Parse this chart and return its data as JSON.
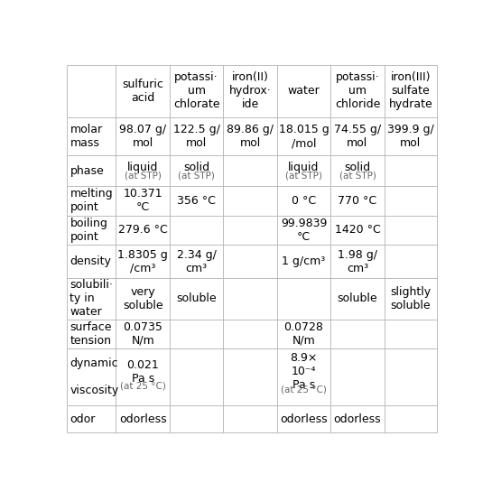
{
  "col_headers_display": [
    [],
    [
      "sulfuric",
      "acid"
    ],
    [
      "potassi·",
      "um",
      "chlorate"
    ],
    [
      "iron(II)",
      "hydrox·",
      "ide"
    ],
    [
      "water"
    ],
    [
      "potassi·",
      "um",
      "chloride"
    ],
    [
      "iron(III)",
      "sulfate",
      "hydrate"
    ]
  ],
  "rows": [
    {
      "label": [
        "molar",
        "mass"
      ],
      "values": [
        "98.07 g/\nmol",
        "122.5 g/\nmol",
        "89.86 g/\nmol",
        "18.015 g\n/mol",
        "74.55 g/\nmol",
        "399.9 g/\nmol"
      ]
    },
    {
      "label": [
        "phase"
      ],
      "values": [
        "liquid\n(at STP)",
        "solid\n(at STP)",
        "",
        "liquid\n(at STP)",
        "solid\n(at STP)",
        ""
      ]
    },
    {
      "label": [
        "melting",
        "point"
      ],
      "values": [
        "10.371\n°C",
        "356 °C",
        "",
        "0 °C",
        "770 °C",
        ""
      ]
    },
    {
      "label": [
        "boiling",
        "point"
      ],
      "values": [
        "279.6 °C",
        "",
        "",
        "99.9839\n°C",
        "1420 °C",
        ""
      ]
    },
    {
      "label": [
        "density"
      ],
      "values": [
        "1.8305 g\n/cm³",
        "2.34 g/\ncm³",
        "",
        "1 g/cm³",
        "1.98 g/\ncm³",
        ""
      ]
    },
    {
      "label": [
        "solubili·",
        "ty in",
        "water"
      ],
      "values": [
        "very\nsoluble",
        "soluble",
        "",
        "",
        "soluble",
        "slightly\nsoluble"
      ]
    },
    {
      "label": [
        "surface",
        "tension"
      ],
      "values": [
        "0.0735\nN/m",
        "",
        "",
        "0.0728\nN/m",
        "",
        ""
      ]
    },
    {
      "label": [
        "dynamic",
        "",
        "viscosity"
      ],
      "values": [
        "0.021\nPa s\n(at 25 °C)",
        "",
        "",
        "8.9×\n10⁻⁴\nPa s\n(at 25 °C)",
        "",
        ""
      ]
    },
    {
      "label": [
        "odor"
      ],
      "values": [
        "odorless",
        "",
        "",
        "odorless",
        "odorless",
        ""
      ]
    }
  ],
  "line_color": "#bbbbbb",
  "bg_color": "#ffffff",
  "text_color": "#000000",
  "small_text_color": "#666666",
  "font_size_header": 9.0,
  "font_size_cell": 9.0,
  "font_size_small": 7.5
}
